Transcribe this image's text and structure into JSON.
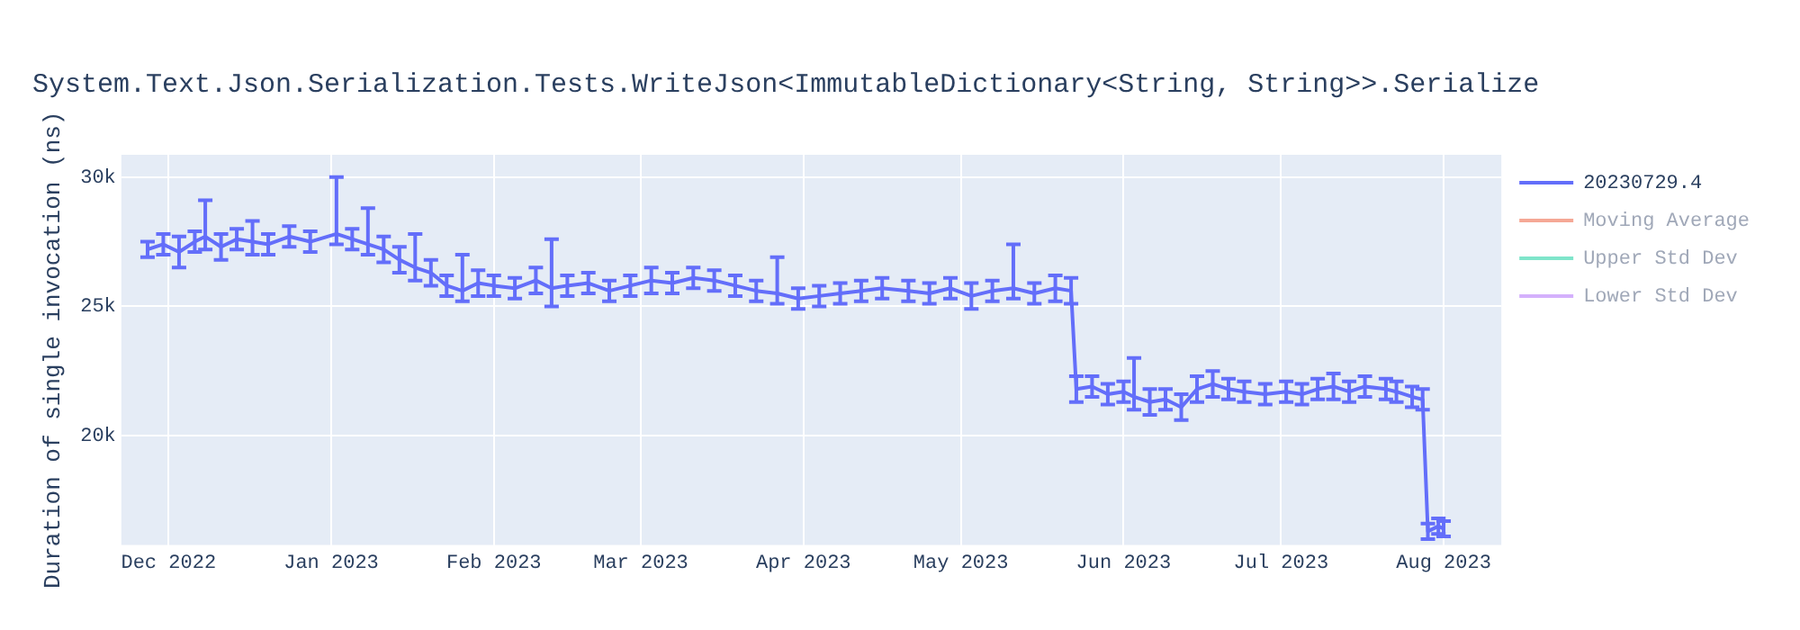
{
  "chart_data": {
    "type": "line",
    "title": "System.Text.Json.Serialization.Tests.WriteJson<ImmutableDictionary<String, String>>.Serialize",
    "ylabel": "Duration of single invocation (ns)",
    "x": [
      "2022-11-27",
      "2022-11-30",
      "2022-12-03",
      "2022-12-06",
      "2022-12-08",
      "2022-12-11",
      "2022-12-14",
      "2022-12-17",
      "2022-12-20",
      "2022-12-24",
      "2022-12-28",
      "2023-01-02",
      "2023-01-05",
      "2023-01-08",
      "2023-01-11",
      "2023-01-14",
      "2023-01-17",
      "2023-01-20",
      "2023-01-23",
      "2023-01-26",
      "2023-01-29",
      "2023-02-01",
      "2023-02-05",
      "2023-02-09",
      "2023-02-12",
      "2023-02-15",
      "2023-02-19",
      "2023-02-23",
      "2023-02-27",
      "2023-03-03",
      "2023-03-07",
      "2023-03-11",
      "2023-03-15",
      "2023-03-19",
      "2023-03-23",
      "2023-03-27",
      "2023-03-31",
      "2023-04-04",
      "2023-04-08",
      "2023-04-12",
      "2023-04-16",
      "2023-04-21",
      "2023-04-25",
      "2023-04-29",
      "2023-05-03",
      "2023-05-07",
      "2023-05-11",
      "2023-05-15",
      "2023-05-19",
      "2023-05-22",
      "2023-05-23",
      "2023-05-26",
      "2023-05-29",
      "2023-06-01",
      "2023-06-03",
      "2023-06-06",
      "2023-06-09",
      "2023-06-12",
      "2023-06-15",
      "2023-06-18",
      "2023-06-21",
      "2023-06-24",
      "2023-06-28",
      "2023-07-02",
      "2023-07-05",
      "2023-07-08",
      "2023-07-11",
      "2023-07-14",
      "2023-07-17",
      "2023-07-21",
      "2023-07-23",
      "2023-07-26",
      "2023-07-28",
      "2023-07-29",
      "2023-07-31",
      "2023-08-01"
    ],
    "series": [
      {
        "name": "20230729.4",
        "color": "#636efa",
        "values": [
          27200,
          27400,
          27100,
          27500,
          27700,
          27300,
          27600,
          27500,
          27400,
          27700,
          27500,
          27800,
          27600,
          27400,
          27200,
          26800,
          26500,
          26300,
          25800,
          25600,
          25900,
          25800,
          25700,
          26000,
          25700,
          25800,
          25900,
          25600,
          25800,
          26000,
          25900,
          26100,
          26000,
          25800,
          25600,
          25500,
          25300,
          25400,
          25500,
          25600,
          25700,
          25600,
          25500,
          25700,
          25400,
          25600,
          25700,
          25500,
          25700,
          25600,
          21800,
          21900,
          21600,
          21700,
          21500,
          21300,
          21400,
          21100,
          21800,
          22000,
          21800,
          21700,
          21600,
          21700,
          21600,
          21800,
          21900,
          21700,
          21900,
          21800,
          21700,
          21500,
          21400,
          16300,
          16500,
          16400
        ],
        "errors": [
          300,
          400,
          600,
          400,
          [
            27200,
            29100
          ],
          500,
          400,
          [
            27000,
            28300
          ],
          400,
          400,
          400,
          [
            27400,
            30000
          ],
          400,
          [
            27000,
            28800
          ],
          500,
          500,
          [
            26000,
            27800
          ],
          500,
          400,
          [
            25200,
            27000
          ],
          500,
          400,
          400,
          500,
          [
            25000,
            27600
          ],
          400,
          400,
          400,
          400,
          500,
          400,
          400,
          400,
          400,
          400,
          [
            25100,
            26900
          ],
          400,
          400,
          400,
          400,
          400,
          400,
          400,
          400,
          500,
          400,
          [
            25300,
            27400
          ],
          400,
          500,
          500,
          500,
          400,
          400,
          400,
          [
            21000,
            23000
          ],
          500,
          400,
          500,
          500,
          500,
          400,
          400,
          400,
          400,
          400,
          400,
          500,
          400,
          400,
          400,
          400,
          400,
          400,
          300,
          300,
          300
        ]
      },
      {
        "name": "Moving Average",
        "color": "#f5a895",
        "values": [
          null,
          null,
          null,
          null,
          null,
          null,
          null,
          null,
          null,
          null,
          null,
          null,
          null,
          null,
          null,
          null,
          null,
          null,
          null,
          null,
          null,
          null,
          null,
          null,
          null,
          null,
          null,
          null,
          null,
          null,
          null,
          null,
          null,
          null,
          null,
          null,
          null,
          null,
          null,
          null,
          null,
          null,
          null,
          null,
          null,
          null,
          null,
          null,
          null,
          null,
          null,
          null,
          null,
          null,
          null,
          null,
          null,
          null,
          null,
          null,
          null,
          null,
          null,
          null,
          null,
          null,
          null,
          null,
          null,
          null,
          null,
          null,
          null,
          null,
          null,
          null
        ]
      },
      {
        "name": "Upper Std Dev",
        "color": "#7fe5ca",
        "values": [
          null,
          null,
          null,
          null,
          null,
          null,
          null,
          null,
          null,
          null,
          null,
          null,
          null,
          null,
          null,
          null,
          null,
          null,
          null,
          null,
          null,
          null,
          null,
          null,
          null,
          null,
          null,
          null,
          null,
          null,
          null,
          null,
          null,
          null,
          null,
          null,
          null,
          null,
          null,
          null,
          null,
          null,
          null,
          null,
          null,
          null,
          null,
          null,
          null,
          null,
          null,
          null,
          null,
          null,
          null,
          null,
          null,
          null,
          null,
          null,
          null,
          null,
          null,
          null,
          null,
          null,
          null,
          null,
          null,
          null,
          null,
          null,
          null,
          null,
          null,
          null
        ]
      },
      {
        "name": "Lower Std Dev",
        "color": "#d4b0fc",
        "values": [
          null,
          null,
          null,
          null,
          null,
          null,
          null,
          null,
          null,
          null,
          null,
          null,
          null,
          null,
          null,
          null,
          null,
          null,
          null,
          null,
          null,
          null,
          null,
          null,
          null,
          null,
          null,
          null,
          null,
          null,
          null,
          null,
          null,
          null,
          null,
          null,
          null,
          null,
          null,
          null,
          null,
          null,
          null,
          null,
          null,
          null,
          null,
          null,
          null,
          null,
          null,
          null,
          null,
          null,
          null,
          null,
          null,
          null,
          null,
          null,
          null,
          null,
          null,
          null,
          null,
          null,
          null,
          null,
          null,
          null,
          null,
          null,
          null,
          null,
          null,
          null
        ]
      }
    ],
    "xlim": [
      "2022-11-22",
      "2023-08-12"
    ],
    "xticks": [
      {
        "value": "2022-12-01",
        "label": "Dec 2022"
      },
      {
        "value": "2023-01-01",
        "label": "Jan 2023"
      },
      {
        "value": "2023-02-01",
        "label": "Feb 2023"
      },
      {
        "value": "2023-03-01",
        "label": "Mar 2023"
      },
      {
        "value": "2023-04-01",
        "label": "Apr 2023"
      },
      {
        "value": "2023-05-01",
        "label": "May 2023"
      },
      {
        "value": "2023-06-01",
        "label": "Jun 2023"
      },
      {
        "value": "2023-07-01",
        "label": "Jul 2023"
      },
      {
        "value": "2023-08-01",
        "label": "Aug 2023"
      }
    ],
    "ylim": [
      15770,
      30860
    ],
    "yticks": [
      {
        "value": 20000,
        "label": "20k"
      },
      {
        "value": 25000,
        "label": "25k"
      },
      {
        "value": 30000,
        "label": "30k"
      }
    ],
    "grid": true,
    "legend": "right",
    "line_style": "solid"
  }
}
